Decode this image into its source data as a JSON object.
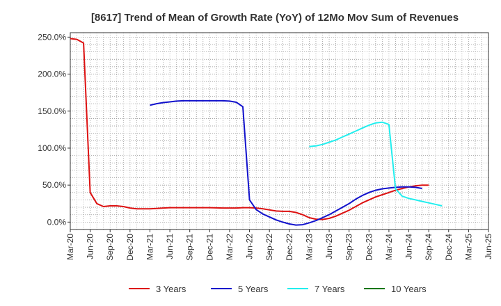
{
  "chart_data": {
    "type": "line",
    "title": "[8617]  Trend of Mean of Growth Rate (YoY) of 12Mo Mov Sum of Revenues",
    "xlabel": "",
    "ylabel": "",
    "x_ticks": [
      "Mar-20",
      "Jun-20",
      "Sep-20",
      "Dec-20",
      "Mar-21",
      "Jun-21",
      "Sep-21",
      "Dec-21",
      "Mar-22",
      "Jun-22",
      "Sep-22",
      "Dec-22",
      "Mar-23",
      "Jun-23",
      "Sep-23",
      "Dec-23",
      "Mar-24",
      "Jun-24",
      "Sep-24",
      "Dec-24",
      "Mar-25",
      "Jun-25"
    ],
    "y_ticks": [
      "0.0%",
      "50.0%",
      "100.0%",
      "150.0%",
      "200.0%",
      "250.0%"
    ],
    "y_tick_values": [
      0,
      50,
      100,
      150,
      200,
      250
    ],
    "ylim": [
      -10,
      256
    ],
    "grid": true,
    "legend_position": "bottom",
    "series": [
      {
        "name": "3 Years",
        "color": "#dd1111",
        "start_index": 0,
        "values": [
          248,
          247,
          242,
          40,
          25,
          21,
          22,
          22,
          21,
          19,
          18,
          18,
          18,
          18.5,
          19,
          19.5,
          19.5,
          19.5,
          19.5,
          19.5,
          19.5,
          19.5,
          19.2,
          19,
          19,
          19,
          19.5,
          19.5,
          19,
          18,
          16.5,
          15,
          14.5,
          14.5,
          13,
          10,
          6,
          4,
          3.5,
          5,
          8,
          12,
          16,
          21,
          26,
          30,
          34,
          37,
          40,
          43,
          45.5,
          47.5,
          49,
          50,
          50
        ]
      },
      {
        "name": "5 Years",
        "color": "#1111cc",
        "start_index": 12,
        "values": [
          158,
          160,
          161.5,
          162.5,
          163.5,
          164,
          164,
          164,
          164,
          164,
          164,
          164,
          163.5,
          162,
          156,
          30,
          17,
          11,
          7,
          3,
          0,
          -2.5,
          -4,
          -3.5,
          -1,
          2,
          6,
          10,
          15,
          20,
          25,
          31,
          36,
          40,
          43,
          45,
          46,
          47,
          47.5,
          47.5,
          47,
          45.5
        ]
      },
      {
        "name": "7 Years",
        "color": "#22eeee",
        "start_index": 36,
        "values": [
          102,
          103,
          105,
          108,
          111,
          115,
          119,
          123,
          127,
          131,
          134,
          135,
          132,
          45,
          35,
          32,
          30,
          28,
          26,
          24,
          22
        ]
      },
      {
        "name": "10 Years",
        "color": "#117711",
        "start_index": 0,
        "values": []
      }
    ]
  }
}
